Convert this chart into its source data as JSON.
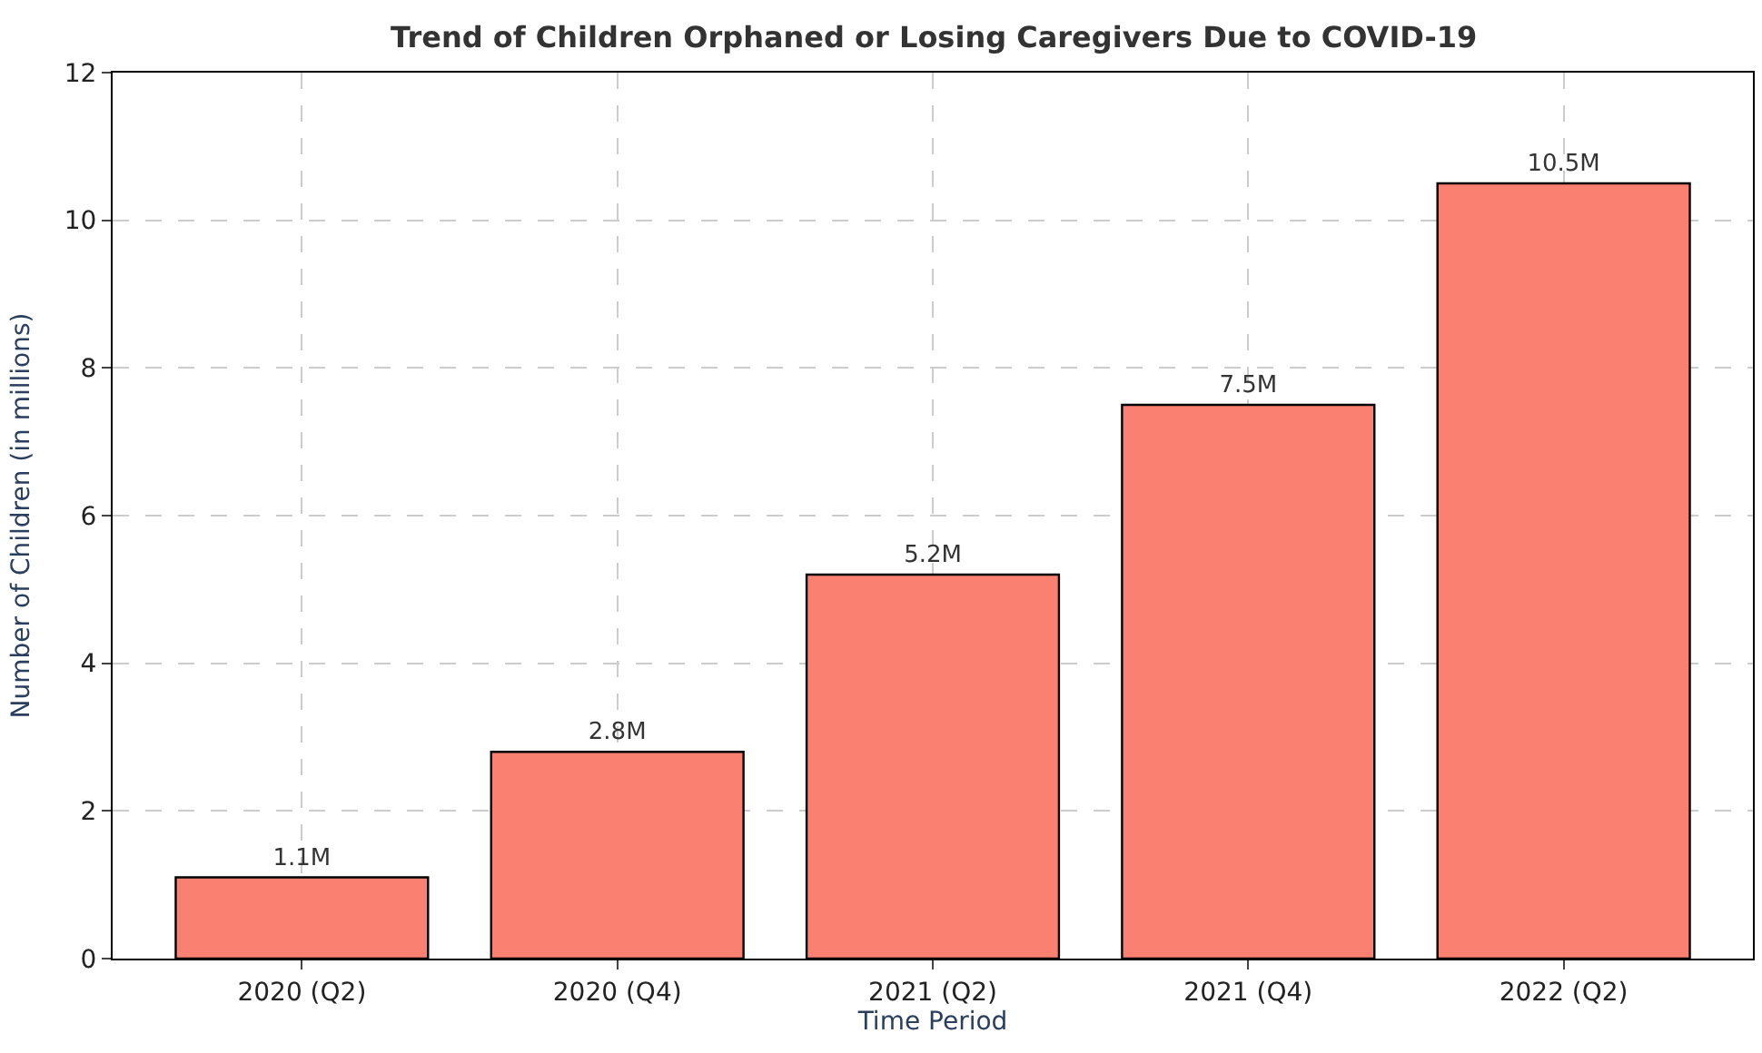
{
  "chart_data": {
    "type": "bar",
    "title": "Trend of Children Orphaned or Losing Caregivers Due to COVID-19",
    "xlabel": "Time Period",
    "ylabel": "Number of Children (in millions)",
    "categories": [
      "2020 (Q2)",
      "2020 (Q4)",
      "2021 (Q2)",
      "2021 (Q4)",
      "2022 (Q2)"
    ],
    "values": [
      1.1,
      2.8,
      5.2,
      7.5,
      10.5
    ],
    "value_labels": [
      "1.1M",
      "2.8M",
      "5.2M",
      "7.5M",
      "10.5M"
    ],
    "color": "#fa8072",
    "ylim": [
      0,
      12
    ],
    "yticks": [
      0,
      2,
      4,
      6,
      8,
      10,
      12
    ],
    "grid": true
  }
}
